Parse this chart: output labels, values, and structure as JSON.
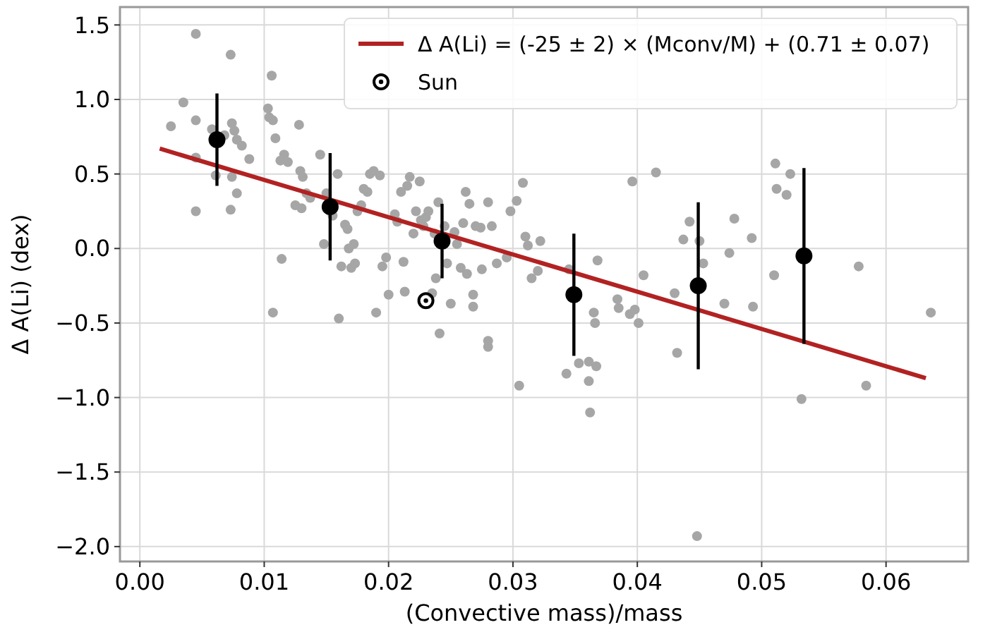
{
  "chart_data": {
    "type": "scatter",
    "xlabel": "(Convective mass)/mass",
    "ylabel": "Δ A(Li) (dex)",
    "xlim": [
      -0.0016,
      0.0666
    ],
    "ylim": [
      -2.1,
      1.62
    ],
    "xticks": [
      {
        "value": 0,
        "label": "0.00"
      },
      {
        "value": 0.01,
        "label": "0.01"
      },
      {
        "value": 0.02,
        "label": "0.02"
      },
      {
        "value": 0.03,
        "label": "0.03"
      },
      {
        "value": 0.04,
        "label": "0.04"
      },
      {
        "value": 0.05,
        "label": "0.05"
      },
      {
        "value": 0.06,
        "label": "0.06"
      }
    ],
    "yticks": [
      {
        "value": -2,
        "label": "−2.0"
      },
      {
        "value": -1.5,
        "label": "−1.5"
      },
      {
        "value": -1,
        "label": "−1.0"
      },
      {
        "value": -0.5,
        "label": "−0.5"
      },
      {
        "value": 0,
        "label": "0.0"
      },
      {
        "value": 0.5,
        "label": "0.5"
      },
      {
        "value": 1,
        "label": "1.0"
      },
      {
        "value": 1.5,
        "label": "1.5"
      }
    ],
    "grid": true,
    "legend": "top right",
    "series": [
      {
        "marker": "circle",
        "color": "#a6a6a6",
        "x": [
          0.0025,
          0.0035,
          0.0045,
          0.0045,
          0.0045,
          0.0045,
          0.0058,
          0.0068,
          0.0073,
          0.0074,
          0.0076,
          0.0078,
          0.0082,
          0.0088,
          0.0073,
          0.0078,
          0.0061,
          0.0074,
          0.0103,
          0.0104,
          0.0106,
          0.0107,
          0.0109,
          0.0113,
          0.0116,
          0.0119,
          0.0114,
          0.0107,
          0.0125,
          0.0128,
          0.0129,
          0.0131,
          0.0134,
          0.013,
          0.0137,
          0.0145,
          0.0148,
          0.015,
          0.0155,
          0.0159,
          0.016,
          0.0162,
          0.0165,
          0.0167,
          0.0168,
          0.017,
          0.0172,
          0.0175,
          0.0173,
          0.0178,
          0.018,
          0.0183,
          0.0185,
          0.0188,
          0.019,
          0.0193,
          0.0195,
          0.0198,
          0.02,
          0.0205,
          0.0207,
          0.021,
          0.0212,
          0.0213,
          0.0215,
          0.0217,
          0.022,
          0.0222,
          0.0225,
          0.0226,
          0.0228,
          0.023,
          0.0232,
          0.0235,
          0.0237,
          0.0238,
          0.024,
          0.0241,
          0.0245,
          0.0247,
          0.025,
          0.0253,
          0.0255,
          0.0258,
          0.026,
          0.0262,
          0.0263,
          0.0265,
          0.0268,
          0.0268,
          0.027,
          0.0274,
          0.0275,
          0.028,
          0.028,
          0.028,
          0.0283,
          0.0287,
          0.0295,
          0.0298,
          0.0303,
          0.0305,
          0.0308,
          0.031,
          0.0312,
          0.0315,
          0.032,
          0.0322,
          0.0343,
          0.0345,
          0.0353,
          0.0361,
          0.0361,
          0.0362,
          0.0365,
          0.0366,
          0.0367,
          0.0368,
          0.0384,
          0.0385,
          0.0394,
          0.0396,
          0.0398,
          0.0401,
          0.0405,
          0.0415,
          0.043,
          0.0432,
          0.0437,
          0.0442,
          0.0448,
          0.045,
          0.0453,
          0.047,
          0.0474,
          0.0478,
          0.0492,
          0.0493,
          0.051,
          0.0511,
          0.0512,
          0.052,
          0.0523,
          0.0532,
          0.0578,
          0.0584,
          0.0636
        ],
        "values": [
          0.82,
          0.98,
          1.44,
          0.86,
          0.61,
          0.25,
          0.8,
          0.76,
          1.3,
          0.84,
          0.79,
          0.73,
          0.69,
          0.6,
          0.26,
          0.37,
          0.49,
          0.48,
          0.94,
          0.88,
          1.16,
          0.86,
          0.74,
          0.59,
          0.63,
          0.58,
          -0.07,
          -0.43,
          0.29,
          0.83,
          0.52,
          0.48,
          0.37,
          0.27,
          0.34,
          0.63,
          0.03,
          0.37,
          0.22,
          0.5,
          -0.47,
          -0.12,
          0.16,
          0.13,
          0,
          -0.13,
          0.03,
          0.25,
          -0.1,
          0.29,
          0.4,
          0.38,
          0.5,
          0.52,
          -0.43,
          0.49,
          -0.12,
          -0.06,
          -0.31,
          0.23,
          0.18,
          0.38,
          -0.09,
          -0.29,
          0.42,
          0.48,
          0.1,
          0.25,
          0.45,
          0.19,
          0.15,
          0.21,
          0.25,
          -0.3,
          0.1,
          -0.2,
          0.31,
          -0.57,
          0.15,
          -0.1,
          -0.37,
          0.11,
          0.03,
          -0.13,
          0.17,
          0.38,
          -0.17,
          0.3,
          -0.31,
          -0.39,
          0.15,
          0.14,
          -0.14,
          0.31,
          -0.62,
          -0.66,
          0.15,
          -0.1,
          -0.06,
          0.25,
          0.32,
          -0.92,
          0.44,
          0.08,
          0.02,
          -0.2,
          -0.15,
          0.05,
          -0.84,
          -0.14,
          -0.77,
          -0.76,
          -0.89,
          -1.1,
          -0.43,
          -0.5,
          -0.79,
          -0.08,
          -0.34,
          -0.4,
          -0.44,
          0.45,
          -0.41,
          -0.5,
          -0.18,
          0.51,
          -0.3,
          -0.7,
          0.06,
          0.18,
          -1.93,
          0.05,
          -0.1,
          -0.37,
          -0.03,
          0.2,
          0.07,
          -0.39,
          -0.18,
          0.57,
          0.4,
          0.36,
          0.5,
          -1.01,
          -0.12,
          -0.92,
          -0.43
        ]
      },
      {
        "type": "line",
        "name": "Δ A(Li) = (-25 ± 2) × (Mconv/M) + (0.71 ± 0.07)",
        "color": "#b22222",
        "marker": "none",
        "line_style": "solid",
        "x": [
          0.0016,
          0.0632
        ],
        "values": [
          0.67,
          -0.87
        ]
      },
      {
        "marker": "circle",
        "color": "#000000",
        "x": [
          0.0062,
          0.0153,
          0.0243,
          0.0349,
          0.0449,
          0.0534
        ],
        "values": [
          0.73,
          0.28,
          0.05,
          -0.31,
          -0.25,
          -0.05
        ],
        "errors": [
          0.31,
          0.36,
          0.25,
          0.41,
          0.56,
          0.59
        ]
      },
      {
        "type": "scatter",
        "name": "Sun",
        "marker": "circle",
        "color": "#000000",
        "x": [
          0.023
        ],
        "values": [
          -0.35
        ]
      }
    ]
  }
}
